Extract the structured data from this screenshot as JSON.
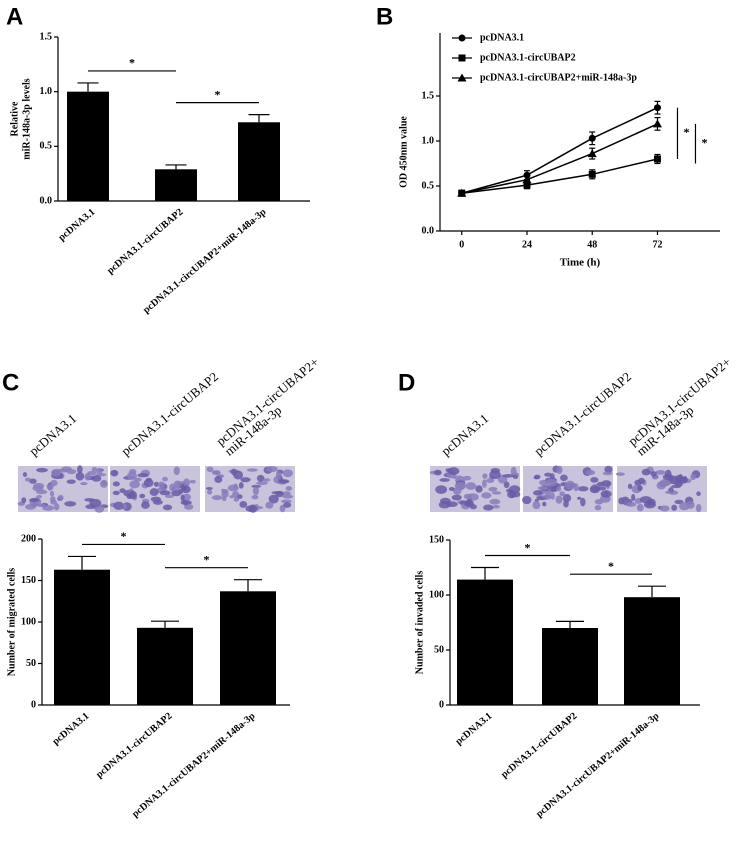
{
  "chart_data": [
    {
      "type": "bar",
      "panel": "A",
      "ylabel": [
        "Relative",
        "miR-148a-3p levels"
      ],
      "categories": [
        "pcDNA3.1",
        "pcDNA3.1-circUBAP2",
        "pcDNA3.1-circUBAP2+miR-148a-3p"
      ],
      "values": [
        1.0,
        0.29,
        0.72
      ],
      "errors": [
        0.08,
        0.04,
        0.07
      ],
      "color": "#000000",
      "ylim": [
        0,
        1.5
      ],
      "yticks": [
        {
          "value": 0,
          "label": "0.0"
        },
        {
          "value": 0.5,
          "label": "0.5"
        },
        {
          "value": 1,
          "label": "1.0"
        },
        {
          "value": 1.5,
          "label": "1.5"
        }
      ],
      "significance": [
        "*",
        "*"
      ]
    },
    {
      "type": "line",
      "panel": "B",
      "xlabel": "Time (h)",
      "ylabel": [
        "OD 450nm value"
      ],
      "x": [
        0,
        24,
        48,
        72
      ],
      "series": [
        {
          "name": "pcDNA3.1",
          "color": "#000000",
          "marker": "circle",
          "values": [
            0.42,
            0.62,
            1.03,
            1.37
          ],
          "errors": [
            0.03,
            0.05,
            0.07,
            0.07
          ]
        },
        {
          "name": "pcDNA3.1-circUBAP2",
          "color": "#000000",
          "marker": "square",
          "values": [
            0.42,
            0.51,
            0.63,
            0.8
          ],
          "errors": [
            0.03,
            0.04,
            0.05,
            0.05
          ]
        },
        {
          "name": "pcDNA3.1-circUBAP2+miR-148a-3p",
          "color": "#000000",
          "marker": "triangle",
          "values": [
            0.42,
            0.57,
            0.86,
            1.19
          ],
          "errors": [
            0.03,
            0.04,
            0.06,
            0.07
          ]
        }
      ],
      "xlim": [
        -8,
        95
      ],
      "xticks": [
        0,
        24,
        48,
        72
      ],
      "ylim": [
        0,
        2.2
      ],
      "yticks": [
        {
          "value": 0,
          "label": "0.0"
        },
        {
          "value": 0.5,
          "label": "0.5"
        },
        {
          "value": 1,
          "label": "1.0"
        },
        {
          "value": 1.5,
          "label": "1.5"
        }
      ],
      "significance": [
        "*",
        "*"
      ]
    },
    {
      "type": "bar",
      "panel": "C",
      "image_labels": [
        [
          "pcDNA3.1"
        ],
        [
          "pcDNA3.1-circUBAP2"
        ],
        [
          "pcDNA3.1-circUBAP2+",
          "miR-148a-3p"
        ]
      ],
      "ylabel": [
        "Number of migrated cells"
      ],
      "categories": [
        "pcDNA3.1",
        "pcDNA3.1-circUBAP2",
        "pcDNA3.1-circUBAP2+miR-148a-3p"
      ],
      "values": [
        163,
        93,
        137
      ],
      "errors": [
        16,
        8,
        14
      ],
      "color": "#000000",
      "ylim": [
        0,
        200
      ],
      "yticks": [
        0,
        50,
        100,
        150,
        200
      ],
      "significance": [
        "*",
        "*"
      ]
    },
    {
      "type": "bar",
      "panel": "D",
      "image_labels": [
        [
          "pcDNA3.1"
        ],
        [
          "pcDNA3.1-circUBAP2"
        ],
        [
          "pcDNA3.1-circUBAP2+",
          "miR-148a-3p"
        ]
      ],
      "ylabel": [
        "Number of invaded cells"
      ],
      "categories": [
        "pcDNA3.1",
        "pcDNA3.1-circUBAP2",
        "pcDNA3.1-circUBAP2+miR-148a-3p"
      ],
      "values": [
        114,
        70,
        98
      ],
      "errors": [
        11,
        6,
        10
      ],
      "color": "#000000",
      "ylim": [
        0,
        150
      ],
      "yticks": [
        0,
        50,
        100,
        150
      ],
      "significance": [
        "*",
        "*"
      ]
    }
  ]
}
